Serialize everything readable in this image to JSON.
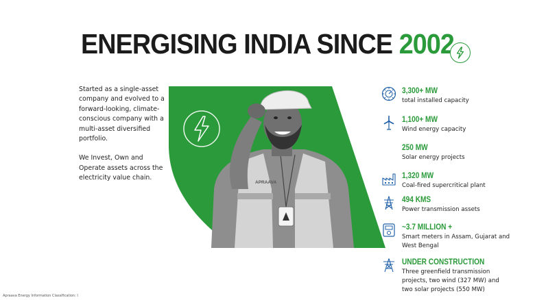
{
  "title": {
    "main": "ENERGISING INDIA SINCE ",
    "year": "2002"
  },
  "intro": {
    "paragraph1": "Started as a single-asset company and evolved to a forward-looking, climate-conscious company with a multi-asset diversified portfolio.",
    "paragraph2": "We Invest, Own and Operate assets across the electricity value chain."
  },
  "hero": {
    "vest_brand": "APRAAVA"
  },
  "stats": [
    {
      "value": "3,300+ MW",
      "label": "total installed capacity",
      "icon": "capacity-gauge-icon"
    },
    {
      "value": "1,100+ MW",
      "label": "Wind energy capacity",
      "icon": "wind-turbine-icon"
    },
    {
      "value": "250 MW",
      "label": "Solar energy projects",
      "icon": ""
    },
    {
      "value": "1,320 MW",
      "label": "Coal-fired supercritical plant",
      "icon": "factory-icon"
    },
    {
      "value": "494 KMS",
      "label": "Power transmission assets",
      "icon": "transmission-tower-icon"
    },
    {
      "value": "~3.7 MILLION +",
      "label": "Smart meters in Assam,  Gujarat and West Bengal",
      "icon": "smart-meter-icon"
    },
    {
      "value": "UNDER CONSTRUCTION",
      "label": "Three greenfield transmission projects, two wind (327 MW) and two solar projects (550 MW)",
      "icon": "construction-tower-icon"
    }
  ],
  "footer": "Apraava Energy Information Classification: I",
  "colors": {
    "accent": "#2a9a3a",
    "text": "#1b1b1b"
  }
}
